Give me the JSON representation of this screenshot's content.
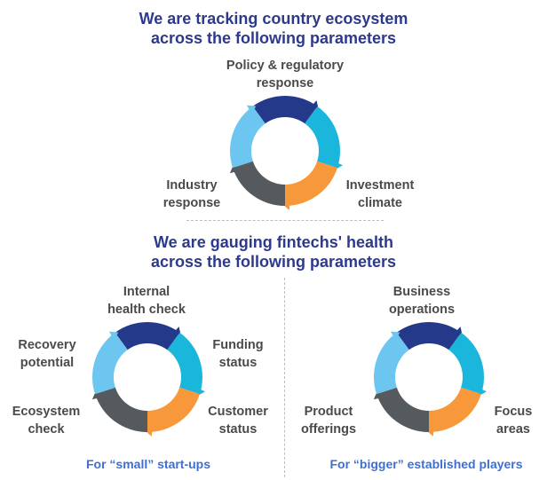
{
  "colors": {
    "heading": "#2d3a8c",
    "label": "#4a4a4a",
    "caption": "#3e6fd1",
    "navy": "#24398a",
    "cyan": "#1bb6dc",
    "orange": "#f7983a",
    "gray": "#555a5f",
    "lightblue": "#6cc6ef"
  },
  "section1": {
    "title_line1": "We are tracking country ecosystem",
    "title_line2": "across the following parameters",
    "labels": {
      "top_line1": "Policy & regulatory",
      "top_line2": "response",
      "right_line1": "Investment",
      "right_line2": "climate",
      "left_line1": "Industry",
      "left_line2": "response"
    }
  },
  "section2": {
    "title_line1": "We are gauging fintechs' health",
    "title_line2": "across the following parameters",
    "small": {
      "caption": "For “small” start-ups",
      "top_line1": "Internal",
      "top_line2": "health check",
      "right_top_line1": "Funding",
      "right_top_line2": "status",
      "right_bottom_line1": "Customer",
      "right_bottom_line2": "status",
      "left_bottom_line1": "Ecosystem",
      "left_bottom_line2": "check",
      "left_top_line1": "Recovery",
      "left_top_line2": "potential"
    },
    "big": {
      "caption": "For “bigger” established players",
      "top_line1": "Business",
      "top_line2": "operations",
      "right_line1": "Focus",
      "right_line2": "areas",
      "left_line1": "Product",
      "left_line2": "offerings"
    }
  }
}
